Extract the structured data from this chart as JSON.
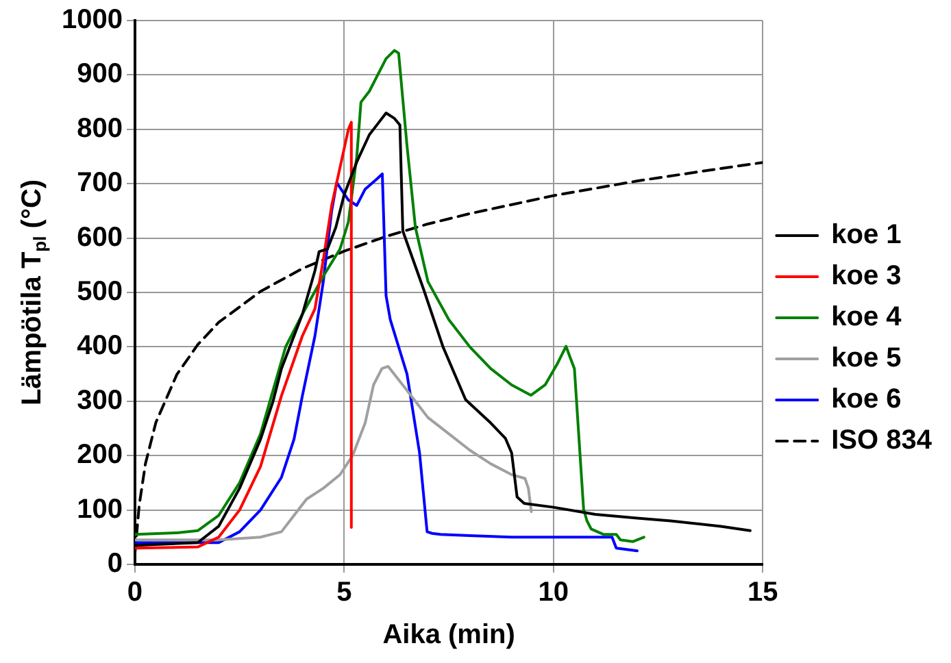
{
  "chart_data": {
    "type": "line",
    "xlabel": "Aika (min)",
    "ylabel": "Lämpötila T$_{pl}$ (°C)",
    "xlim": [
      0,
      15
    ],
    "xticks": [
      0,
      5,
      10,
      15
    ],
    "ylim": [
      0,
      1000
    ],
    "yticks": [
      0,
      100,
      200,
      300,
      400,
      500,
      600,
      700,
      800,
      900,
      1000
    ],
    "grid": true,
    "legend": "right",
    "marker": "none",
    "series": [
      {
        "name": "koe 1",
        "color": "#000000",
        "x": [
          0,
          1.5,
          2,
          2.5,
          3,
          3.3,
          3.5,
          3.8,
          4,
          4.3,
          4.4,
          4.6,
          4.8,
          5,
          5.3,
          5.6,
          5.8,
          6,
          6.2,
          6.33,
          6.4,
          6.9,
          7.36,
          7.9,
          8.5,
          8.85,
          9,
          9.13,
          9.3,
          10,
          11,
          12,
          12.8,
          14,
          14.7
        ],
        "values": [
          35,
          40,
          70,
          140,
          230,
          300,
          360,
          420,
          460,
          540,
          575,
          580,
          620,
          680,
          740,
          790,
          810,
          830,
          820,
          808,
          613,
          505,
          400,
          303,
          260,
          232,
          205,
          124,
          112,
          105,
          92,
          85,
          80,
          70,
          62
        ]
      },
      {
        "name": "koe 3",
        "color": "#ff0000",
        "x": [
          0,
          1.5,
          2,
          2.5,
          3,
          3.5,
          4,
          4.3,
          4.5,
          4.7,
          4.9,
          5.1,
          5.17,
          5.17
        ],
        "values": [
          30,
          32,
          50,
          100,
          180,
          310,
          420,
          470,
          560,
          660,
          730,
          800,
          813,
          68
        ]
      },
      {
        "name": "koe 4",
        "color": "#008000",
        "x": [
          0,
          1,
          1.5,
          2,
          2.5,
          3,
          3.3,
          3.6,
          4,
          4.5,
          4.9,
          5.1,
          5.3,
          5.4,
          5.6,
          5.8,
          6,
          6.2,
          6.3,
          6.5,
          6.7,
          7,
          7.5,
          8,
          8.5,
          9,
          9.46,
          9.8,
          10.1,
          10.3,
          10.4,
          10.5,
          10.72,
          10.8,
          10.9,
          11.2,
          11.5,
          11.6,
          11.9,
          12.16
        ],
        "values": [
          55,
          58,
          62,
          90,
          150,
          240,
          320,
          400,
          460,
          530,
          580,
          630,
          750,
          850,
          870,
          900,
          930,
          945,
          940,
          770,
          620,
          520,
          450,
          400,
          360,
          330,
          311,
          330,
          370,
          401,
          380,
          360,
          101,
          80,
          65,
          55,
          55,
          45,
          42,
          50
        ]
      },
      {
        "name": "koe 5",
        "color": "#a0a0a0",
        "x": [
          0,
          2,
          3,
          3.5,
          3.8,
          4.1,
          4.5,
          4.9,
          5.2,
          5.5,
          5.7,
          5.9,
          6.05,
          6.5,
          7,
          7.5,
          8,
          8.5,
          9,
          9.32,
          9.4,
          9.47
        ],
        "values": [
          45,
          45,
          50,
          60,
          90,
          120,
          140,
          165,
          200,
          260,
          330,
          360,
          364,
          320,
          270,
          240,
          210,
          185,
          165,
          158,
          140,
          97
        ]
      },
      {
        "name": "koe 6",
        "color": "#0000ff",
        "x": [
          0,
          2,
          2.5,
          3,
          3.5,
          3.8,
          4,
          4.3,
          4.5,
          4.7,
          4.82,
          5.1,
          5.3,
          5.5,
          5.8,
          5.91,
          6,
          6.1,
          6.5,
          6.8,
          6.98,
          7.1,
          7.3,
          8,
          9,
          10,
          11,
          11.4,
          11.5,
          12
        ],
        "values": [
          40,
          40,
          60,
          100,
          160,
          230,
          310,
          420,
          520,
          650,
          702,
          670,
          660,
          690,
          710,
          718,
          494,
          450,
          350,
          205,
          60,
          57,
          55,
          53,
          50,
          50,
          50,
          50,
          30,
          25
        ]
      },
      {
        "name": "ISO 834",
        "color": "#000000",
        "line_style": "dashed",
        "x": [
          0,
          0.1,
          0.25,
          0.5,
          1,
          1.5,
          2,
          3,
          4,
          5,
          6,
          7,
          8,
          10,
          12,
          14,
          15
        ],
        "values": [
          20,
          108,
          185,
          261,
          349,
          404,
          445,
          502,
          544,
          576,
          603,
          626,
          645,
          678,
          705,
          728,
          739
        ]
      }
    ]
  }
}
